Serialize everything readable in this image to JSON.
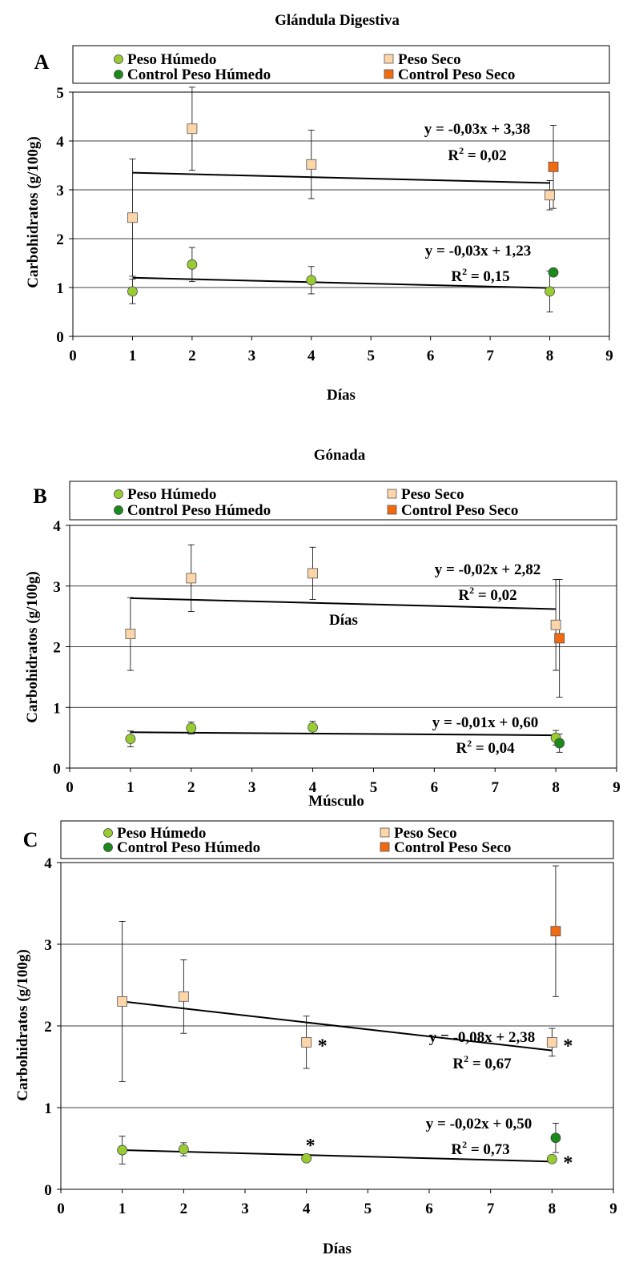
{
  "legend": {
    "peso_humedo": "Peso Húmedo",
    "peso_seco": "Peso Seco",
    "control_peso_humedo": "Control Peso Húmedo",
    "control_peso_seco": "Control Peso Seco"
  },
  "colors": {
    "peso_humedo": "#99cc33",
    "peso_seco": "#fcd5a8",
    "control_peso_humedo": "#1a8a1a",
    "control_peso_seco": "#f26a10",
    "trendline": "#000000"
  },
  "chart_data": [
    {
      "type": "scatter",
      "panel": "A",
      "title": "Glándula Digestiva",
      "xlabel": "Días",
      "ylabel": "Carbohidratos (g/100g)",
      "xlim": [
        0,
        9
      ],
      "ylim": [
        0,
        5
      ],
      "xticks": [
        "0",
        "1",
        "2",
        "3",
        "4",
        "5",
        "6",
        "7",
        "8",
        "9"
      ],
      "yticks": [
        "0",
        "1",
        "2",
        "3",
        "4",
        "5"
      ],
      "grid": "horizontal",
      "series": [
        {
          "name": "Peso Húmedo",
          "x": [
            1,
            2,
            4,
            8
          ],
          "y": [
            0.92,
            1.47,
            1.15,
            0.92
          ],
          "err": [
            0.25,
            0.35,
            0.28,
            0.42
          ]
        },
        {
          "name": "Peso Seco",
          "x": [
            1,
            2,
            4,
            8
          ],
          "y": [
            2.43,
            4.25,
            3.52,
            2.89
          ],
          "err": [
            1.2,
            0.85,
            0.7,
            0.3
          ]
        },
        {
          "name": "Control Peso Húmedo",
          "x": [
            8
          ],
          "y": [
            1.31
          ],
          "err": [
            0
          ]
        },
        {
          "name": "Control Peso Seco",
          "x": [
            8
          ],
          "y": [
            3.47
          ],
          "err": [
            0.85
          ]
        }
      ],
      "trendlines": [
        {
          "equation": "y = -0,03x + 3,38",
          "r2_label": "R",
          "r2_value": " = 0,02",
          "x": [
            1,
            8
          ],
          "y": [
            3.35,
            3.14
          ]
        },
        {
          "equation": "y = -0,03x + 1,23",
          "r2_label": "R",
          "r2_value": " = 0,15",
          "x": [
            1,
            8
          ],
          "y": [
            1.2,
            0.99
          ]
        }
      ],
      "annotations": []
    },
    {
      "type": "scatter",
      "panel": "B",
      "title": "Gónada",
      "xlabel": "Días",
      "ylabel": "Carbohidratos (g/100g)",
      "xlim": [
        0,
        9
      ],
      "ylim": [
        0,
        4
      ],
      "xticks": [
        "0",
        "1",
        "2",
        "3",
        "4",
        "5",
        "6",
        "7",
        "8",
        "9"
      ],
      "yticks": [
        "0",
        "1",
        "2",
        "3",
        "4"
      ],
      "grid": "horizontal",
      "series": [
        {
          "name": "Peso Húmedo",
          "x": [
            1,
            2,
            4,
            8
          ],
          "y": [
            0.48,
            0.66,
            0.67,
            0.5
          ],
          "err": [
            0.13,
            0.1,
            0.1,
            0.12
          ]
        },
        {
          "name": "Peso Seco",
          "x": [
            1,
            2,
            4,
            8
          ],
          "y": [
            2.21,
            3.13,
            3.21,
            2.36
          ],
          "err": [
            0.6,
            0.55,
            0.43,
            0.75
          ]
        },
        {
          "name": "Control Peso Húmedo",
          "x": [
            8
          ],
          "y": [
            0.41
          ],
          "err": [
            0.15
          ]
        },
        {
          "name": "Control Peso Seco",
          "x": [
            8
          ],
          "y": [
            2.14
          ],
          "err": [
            0.97
          ]
        }
      ],
      "trendlines": [
        {
          "equation": "y = -0,02x + 2,82",
          "r2_label": "R",
          "r2_value": " = 0,02",
          "x": [
            1,
            8
          ],
          "y": [
            2.8,
            2.62
          ]
        },
        {
          "equation": "y = -0,01x + 0,60",
          "r2_label": "R",
          "r2_value": " = 0,04",
          "x": [
            1,
            8
          ],
          "y": [
            0.59,
            0.54
          ]
        }
      ],
      "annotations": []
    },
    {
      "type": "scatter",
      "panel": "C",
      "title": "Músculo",
      "xlabel": "Días",
      "ylabel": "Carbohidratos (g/100g)",
      "xlim": [
        0,
        9
      ],
      "ylim": [
        0,
        4
      ],
      "xticks": [
        "0",
        "1",
        "2",
        "3",
        "4",
        "5",
        "6",
        "7",
        "8",
        "9"
      ],
      "yticks": [
        "0",
        "1",
        "2",
        "3",
        "4"
      ],
      "grid": "horizontal",
      "series": [
        {
          "name": "Peso Húmedo",
          "x": [
            1,
            2,
            4,
            8
          ],
          "y": [
            0.48,
            0.49,
            0.38,
            0.37
          ],
          "err": [
            0.17,
            0.08,
            0,
            0
          ]
        },
        {
          "name": "Peso Seco",
          "x": [
            1,
            2,
            4,
            8
          ],
          "y": [
            2.3,
            2.36,
            1.8,
            1.8
          ],
          "err": [
            0.98,
            0.45,
            0.32,
            0.17
          ]
        },
        {
          "name": "Control Peso Húmedo",
          "x": [
            8
          ],
          "y": [
            0.63
          ],
          "err": [
            0.18
          ]
        },
        {
          "name": "Control Peso Seco",
          "x": [
            8
          ],
          "y": [
            3.16
          ],
          "err": [
            0.8
          ]
        }
      ],
      "trendlines": [
        {
          "equation": "y = -0,08x + 2,38",
          "r2_label": "R",
          "r2_value": " = 0,67",
          "x": [
            1,
            8
          ],
          "y": [
            2.3,
            1.7
          ]
        },
        {
          "equation": "y = -0,02x + 0,50",
          "r2_label": "R",
          "r2_value": " = 0,73",
          "x": [
            1,
            8
          ],
          "y": [
            0.48,
            0.34
          ]
        }
      ],
      "annotations": [
        {
          "text": "*",
          "x": 4,
          "y": 1.8
        },
        {
          "text": "*",
          "x": 8,
          "y": 1.8
        },
        {
          "text": "*",
          "x": 4,
          "y": 0.38
        },
        {
          "text": "*",
          "x": 8,
          "y": 0.37
        }
      ]
    }
  ]
}
